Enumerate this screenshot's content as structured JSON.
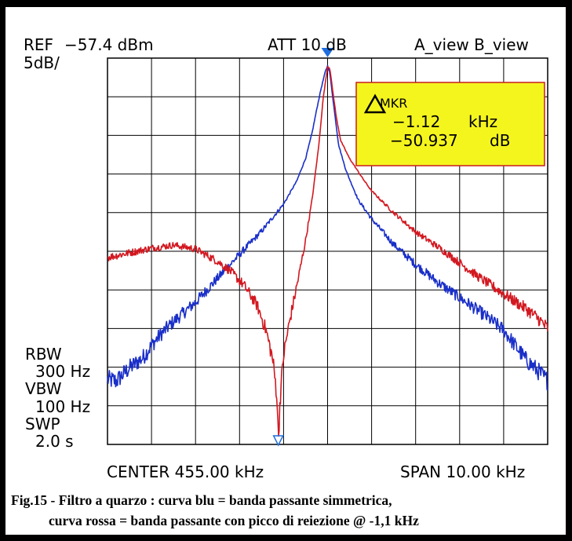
{
  "header": {
    "ref_label": "REF",
    "ref_value": "−57.4 dBm",
    "scale": "5dB/",
    "att": "ATT 10 dB",
    "view": "A_view B_view"
  },
  "marker_box": {
    "title": "MKR",
    "freq_value": "−1.12",
    "freq_unit": "kHz",
    "level_value": "−50.937",
    "level_unit": "dB"
  },
  "left_panel": {
    "rbw_label": "RBW",
    "rbw_value": "300 Hz",
    "vbw_label": "VBW",
    "vbw_value": "100 Hz",
    "swp_label": "SWP",
    "swp_value": "2.0 s"
  },
  "footer": {
    "center": "CENTER 455.00 kHz",
    "span": "SPAN 10.00 kHz"
  },
  "caption": {
    "line1": "Fig.15 - Filtro a quarzo : curva blu = banda passante simmetrica,",
    "line2": "curva rossa = banda passante con picco di reiezione @ -1,1  kHz"
  },
  "colors": {
    "blue_trace": "#1a2fc8",
    "red_trace": "#d21820",
    "marker_box_fill": "#f5f51e",
    "marker_triangle": "#1e6ee0"
  },
  "chart_data": {
    "type": "line",
    "x_unit": "kHz offset from 455.00 kHz",
    "xlim": [
      -5,
      5
    ],
    "ylim": [
      -107.4,
      -57.4
    ],
    "y_unit": "dBm",
    "grid": true,
    "x_divisions": 10,
    "y_divisions": 10,
    "series": [
      {
        "color": "blue",
        "x": [
          -5.0,
          -4.8,
          -4.5,
          -4.2,
          -4.0,
          -3.8,
          -3.5,
          -3.2,
          -3.0,
          -2.5,
          -2.0,
          -1.5,
          -1.0,
          -0.7,
          -0.5,
          -0.35,
          -0.25,
          -0.15,
          -0.05,
          0.0,
          0.05,
          0.15,
          0.25,
          0.4,
          0.5,
          0.7,
          1.0,
          1.5,
          2.0,
          2.5,
          3.0,
          3.5,
          4.0,
          4.5,
          4.8,
          5.0
        ],
        "y": [
          -99.0,
          -99.2,
          -97.5,
          -96.2,
          -94.6,
          -93.2,
          -91.5,
          -90.0,
          -89.0,
          -85.9,
          -82.8,
          -79.8,
          -76.3,
          -73.3,
          -70.4,
          -67.0,
          -64.1,
          -61.4,
          -59.1,
          -58.4,
          -59.3,
          -64.0,
          -68.6,
          -71.6,
          -73.1,
          -75.8,
          -78.2,
          -81.5,
          -84.1,
          -86.4,
          -88.4,
          -90.4,
          -92.6,
          -96.4,
          -98.0,
          -99.2
        ]
      },
      {
        "color": "red",
        "x": [
          -5.0,
          -4.5,
          -4.0,
          -3.5,
          -3.0,
          -2.5,
          -2.2,
          -1.9,
          -1.6,
          -1.4,
          -1.25,
          -1.15,
          -1.12,
          -1.08,
          -1.0,
          -0.9,
          -0.8,
          -0.65,
          -0.5,
          -0.35,
          -0.2,
          -0.1,
          0.0,
          0.05,
          0.1,
          0.2,
          0.3,
          0.5,
          0.8,
          1.0,
          1.5,
          2.0,
          2.5,
          3.0,
          3.5,
          4.0,
          4.5,
          4.8,
          5.0
        ],
        "y": [
          -83.2,
          -82.6,
          -82.0,
          -81.6,
          -82.1,
          -83.7,
          -85.0,
          -86.8,
          -89.4,
          -92.6,
          -96.3,
          -101.0,
          -107.0,
          -101.5,
          -95.9,
          -92.6,
          -89.7,
          -85.5,
          -81.0,
          -75.6,
          -68.7,
          -62.6,
          -58.5,
          -58.7,
          -60.9,
          -65.1,
          -68.1,
          -70.4,
          -73.0,
          -74.6,
          -77.4,
          -79.9,
          -81.8,
          -83.9,
          -86.0,
          -87.9,
          -89.8,
          -91.2,
          -92.4
        ]
      }
    ],
    "markers": [
      {
        "x": 0.0,
        "y": -57.4,
        "style": "filled-triangle"
      },
      {
        "x": -1.12,
        "y": -107.4,
        "style": "hollow-triangle"
      }
    ]
  }
}
